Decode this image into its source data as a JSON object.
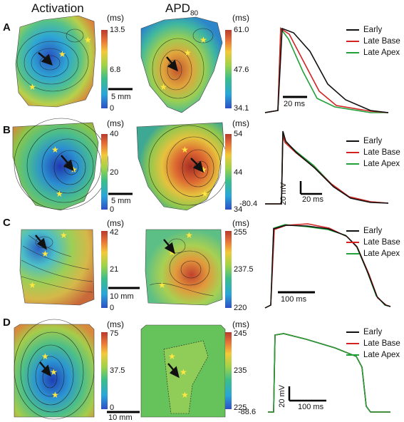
{
  "headers": {
    "activation": "Activation",
    "apd": "APD",
    "apd_sub": "80"
  },
  "legend": [
    "Early",
    "Late Base",
    "Late Apex"
  ],
  "colors": {
    "early": "#111111",
    "late_base": "#d42222",
    "late_apex": "#22a03a"
  },
  "panels": [
    {
      "label": "A",
      "act_unit": "(ms)",
      "act_ticks": [
        "13.5",
        "6.8",
        "0"
      ],
      "act_scale": "5 mm",
      "apd_unit": "(ms)",
      "apd_ticks": [
        "61.0",
        "47.6",
        "34.1"
      ],
      "trace_scale": "20 ms"
    },
    {
      "label": "B",
      "act_unit": "(ms)",
      "act_ticks": [
        "40",
        "20",
        "0"
      ],
      "act_scale": "5 mm",
      "apd_unit": "(ms)",
      "apd_ticks": [
        "54",
        "44",
        "34"
      ],
      "trace_min": "-80.4",
      "trace_v": "20 mV",
      "trace_t": "20 ms"
    },
    {
      "label": "C",
      "act_unit": "(ms)",
      "act_ticks": [
        "42",
        "21",
        "0"
      ],
      "act_scale": "10 mm",
      "apd_unit": "(ms)",
      "apd_ticks": [
        "255",
        "237.5",
        "220"
      ],
      "trace_scale": "100 ms"
    },
    {
      "label": "D",
      "act_unit": "(ms)",
      "act_ticks": [
        "75",
        "37.5",
        "0"
      ],
      "act_scale": "10 mm",
      "apd_unit": "(ms)",
      "apd_ticks": [
        "245",
        "235",
        "225"
      ],
      "trace_min": "-88.6",
      "trace_v": "20 mV",
      "trace_t": "100 ms"
    }
  ]
}
